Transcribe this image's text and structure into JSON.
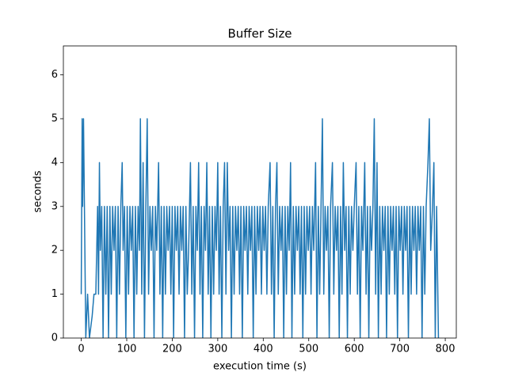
{
  "chart_data": {
    "type": "line",
    "title": "Buffer Size",
    "x_label": "execution time (s)",
    "y_label": "seconds",
    "xlim": [
      -39.25,
      824.25
    ],
    "ylim": [
      0,
      6.66
    ],
    "xticks": [
      0,
      100,
      200,
      300,
      400,
      500,
      600,
      700,
      800
    ],
    "yticks": [
      0,
      1,
      2,
      3,
      4,
      5,
      6
    ],
    "series": [
      {
        "color": "#1f77b4",
        "x": [
          0,
          2,
          3,
          5,
          7,
          10,
          14,
          18,
          24,
          28,
          32,
          36,
          38,
          40,
          42,
          45,
          48,
          51,
          54,
          57,
          60,
          63,
          66,
          69,
          72,
          75,
          78,
          81,
          84,
          87,
          90,
          92,
          95,
          98,
          101,
          104,
          107,
          110,
          113,
          116,
          119,
          122,
          125,
          128,
          130,
          133,
          136,
          139,
          142,
          145,
          148,
          151,
          154,
          157,
          160,
          163,
          166,
          170,
          173,
          176,
          179,
          182,
          185,
          188,
          191,
          194,
          197,
          200,
          203,
          206,
          209,
          212,
          215,
          218,
          221,
          224,
          227,
          230,
          233,
          236,
          240,
          243,
          246,
          249,
          252,
          255,
          258,
          261,
          264,
          267,
          270,
          273,
          276,
          279,
          282,
          285,
          288,
          291,
          294,
          297,
          300,
          303,
          306,
          309,
          312,
          315,
          318,
          321,
          324,
          327,
          330,
          333,
          336,
          339,
          342,
          345,
          348,
          351,
          354,
          357,
          360,
          363,
          366,
          369,
          372,
          375,
          378,
          381,
          384,
          387,
          390,
          393,
          396,
          399,
          402,
          405,
          408,
          411,
          415,
          418,
          421,
          424,
          427,
          430,
          433,
          436,
          439,
          442,
          445,
          448,
          451,
          454,
          457,
          460,
          463,
          466,
          469,
          472,
          475,
          478,
          481,
          484,
          487,
          490,
          493,
          496,
          499,
          502,
          505,
          508,
          511,
          515,
          518,
          521,
          524,
          527,
          530,
          533,
          536,
          539,
          542,
          545,
          548,
          552,
          555,
          558,
          561,
          564,
          567,
          570,
          573,
          576,
          579,
          582,
          585,
          588,
          591,
          594,
          597,
          600,
          604,
          607,
          610,
          613,
          616,
          619,
          623,
          626,
          629,
          632,
          635,
          638,
          641,
          644,
          647,
          650,
          653,
          656,
          659,
          662,
          665,
          668,
          671,
          674,
          677,
          680,
          683,
          686,
          689,
          692,
          695,
          698,
          701,
          704,
          707,
          710,
          713,
          716,
          719,
          722,
          725,
          728,
          731,
          734,
          737,
          740,
          743,
          746,
          749,
          752,
          755,
          758,
          762,
          765,
          768,
          772,
          775,
          778,
          781,
          785
        ],
        "values": [
          1,
          5,
          3,
          5,
          3,
          0,
          1,
          0,
          0.5,
          1,
          1,
          3,
          1,
          4,
          2,
          3,
          0,
          3,
          1,
          3,
          0,
          3,
          1,
          3,
          2,
          3,
          0,
          3,
          1,
          3,
          4,
          2,
          3,
          0,
          3,
          1,
          3,
          2,
          3,
          0,
          3,
          1,
          3,
          2,
          5,
          1,
          4,
          0,
          3,
          5,
          1,
          3,
          2,
          3,
          0,
          3,
          2,
          4,
          1,
          3,
          0,
          3,
          1,
          3,
          2,
          3,
          1,
          3,
          0,
          3,
          2,
          3,
          1,
          3,
          2,
          3,
          0,
          3,
          1,
          2,
          4,
          1,
          3,
          0,
          3,
          2,
          4,
          1,
          3,
          0,
          3,
          2,
          4,
          1,
          3,
          0,
          3,
          1,
          3,
          2,
          4,
          1,
          3,
          0,
          3,
          4,
          1,
          4,
          2,
          3,
          0,
          3,
          1,
          3,
          2,
          3,
          1,
          3,
          0,
          3,
          2,
          3,
          1,
          3,
          2,
          3,
          0,
          3,
          1,
          3,
          2,
          3,
          1,
          3,
          2,
          3,
          1,
          3,
          4,
          1,
          3,
          0,
          3,
          4,
          1,
          3,
          2,
          3,
          0,
          3,
          1,
          3,
          2,
          4,
          0,
          3,
          1,
          3,
          2,
          3,
          1,
          3,
          0,
          3,
          1,
          3,
          2,
          3,
          1,
          3,
          2,
          4,
          0,
          3,
          1,
          3,
          5,
          1,
          3,
          2,
          3,
          0,
          3,
          4,
          1,
          3,
          2,
          3,
          0,
          3,
          1,
          4,
          2,
          3,
          0,
          3,
          1,
          3,
          2,
          3,
          4,
          1,
          3,
          0,
          3,
          2,
          4,
          1,
          3,
          0,
          3,
          2,
          3,
          5,
          1,
          4,
          0,
          3,
          1,
          3,
          2,
          3,
          0,
          3,
          1,
          3,
          2,
          3,
          1,
          3,
          0,
          3,
          2,
          3,
          1,
          3,
          2,
          3,
          0,
          3,
          1,
          3,
          2,
          3,
          1,
          3,
          2,
          3,
          0,
          3,
          1,
          3,
          4,
          5,
          2,
          3,
          4,
          0,
          3,
          0
        ]
      }
    ]
  }
}
